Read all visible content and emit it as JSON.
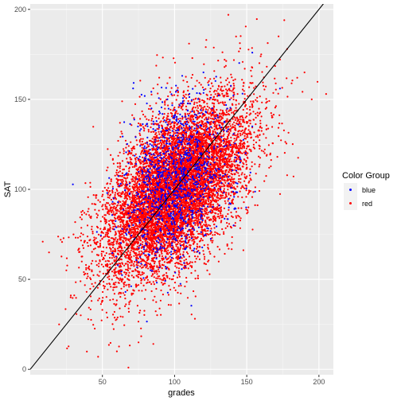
{
  "chart_data": {
    "type": "scatter",
    "xlabel": "grades",
    "ylabel": "SAT",
    "xlim": [
      0,
      210
    ],
    "ylim": [
      -3,
      203
    ],
    "x_ticks": [
      50,
      100,
      150,
      200
    ],
    "y_ticks": [
      0,
      50,
      100,
      150,
      200
    ],
    "x_tick_labels": [
      "50",
      "100",
      "150",
      "200"
    ],
    "y_tick_labels": [
      "0",
      "50",
      "100",
      "150",
      "200"
    ],
    "grid": true,
    "legend": {
      "title": "Color Group",
      "placement": "right",
      "entries": [
        {
          "label": "blue",
          "color": "#0000ff"
        },
        {
          "label": "red",
          "color": "#ff0000"
        }
      ]
    },
    "reference_line": {
      "intercept": 0,
      "slope": 1,
      "color": "#000000"
    },
    "series": [
      {
        "name": "red",
        "color": "#ff0000",
        "distribution": {
          "mean_x": 100,
          "mean_y": 100,
          "sd_x": 25,
          "sd_y": 25,
          "correlation": 0.55,
          "count": 9000
        },
        "points": [
          {
            "x": 20,
            "y": 25
          },
          {
            "x": 13,
            "y": 65
          },
          {
            "x": 47,
            "y": 7
          },
          {
            "x": 68,
            "y": 1
          },
          {
            "x": 205,
            "y": 153
          },
          {
            "x": 176,
            "y": 194
          },
          {
            "x": 190,
            "y": 165
          },
          {
            "x": 185,
            "y": 162
          },
          {
            "x": 178,
            "y": 178
          },
          {
            "x": 122,
            "y": 183
          },
          {
            "x": 110,
            "y": 181
          },
          {
            "x": 28,
            "y": 40
          },
          {
            "x": 30,
            "y": 75
          },
          {
            "x": 35,
            "y": 30
          },
          {
            "x": 160,
            "y": 175
          },
          {
            "x": 172,
            "y": 185
          },
          {
            "x": 25,
            "y": 55
          },
          {
            "x": 60,
            "y": 10
          },
          {
            "x": 75,
            "y": 15
          },
          {
            "x": 195,
            "y": 150
          }
        ]
      },
      {
        "name": "blue",
        "color": "#0000ff",
        "distribution": {
          "mean_x": 100,
          "mean_y": 105,
          "sd_x": 18,
          "sd_y": 22,
          "correlation": 0.3,
          "count": 1100
        },
        "points": [
          {
            "x": 173,
            "y": 156
          },
          {
            "x": 84,
            "y": 145
          },
          {
            "x": 66,
            "y": 43
          },
          {
            "x": 100,
            "y": 140
          },
          {
            "x": 120,
            "y": 165
          },
          {
            "x": 95,
            "y": 150
          }
        ]
      }
    ]
  }
}
